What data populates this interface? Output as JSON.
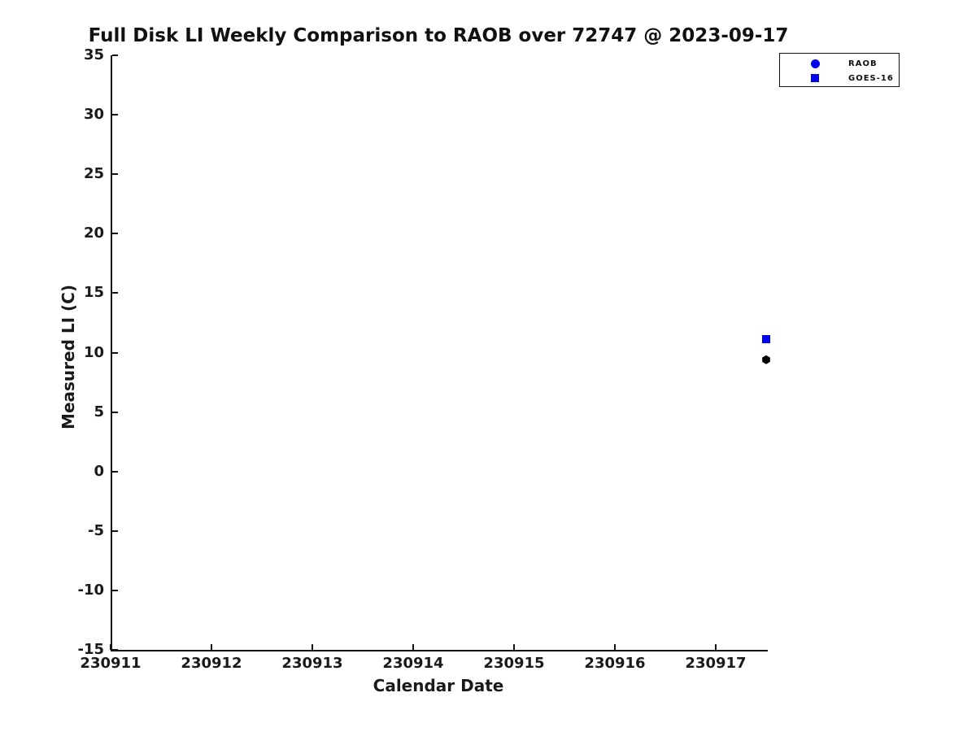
{
  "chart_data": {
    "type": "scatter",
    "title": "Full Disk LI Weekly Comparison to RAOB over 72747 @ 2023-09-17",
    "xlabel": "Calendar Date",
    "ylabel": "Measured LI (C)",
    "xlim": [
      230911,
      230917.5
    ],
    "ylim": [
      -15,
      35
    ],
    "x_ticks": [
      "230911",
      "230912",
      "230913",
      "230914",
      "230915",
      "230916",
      "230917"
    ],
    "x_tick_values": [
      230911,
      230912,
      230913,
      230914,
      230915,
      230916,
      230917
    ],
    "y_ticks": [
      "35",
      "30",
      "25",
      "20",
      "15",
      "10",
      "5",
      "0",
      "-5",
      "-10",
      "-15"
    ],
    "y_tick_values": [
      35,
      30,
      25,
      20,
      15,
      10,
      5,
      0,
      -5,
      -10,
      -15
    ],
    "grid": false,
    "legend": {
      "position": "top-right",
      "entries": [
        {
          "label": "RAOB",
          "marker": "circle",
          "color": "#0000EE",
          "size": 11
        },
        {
          "label": "GOES-16",
          "marker": "square",
          "color": "#0000EE",
          "size": 10
        }
      ]
    },
    "series": [
      {
        "name": "RAOB",
        "marker": "hexagon",
        "color": "#000000",
        "size": 11,
        "points": [
          {
            "x": 230917.5,
            "y": 9.4
          }
        ]
      },
      {
        "name": "GOES-16",
        "marker": "square",
        "color": "#0000EE",
        "size": 10,
        "points": [
          {
            "x": 230917.5,
            "y": 11.1
          }
        ]
      }
    ],
    "colors": {
      "axis": "#111111",
      "text": "#1a1a1a",
      "background": "#ffffff"
    }
  }
}
